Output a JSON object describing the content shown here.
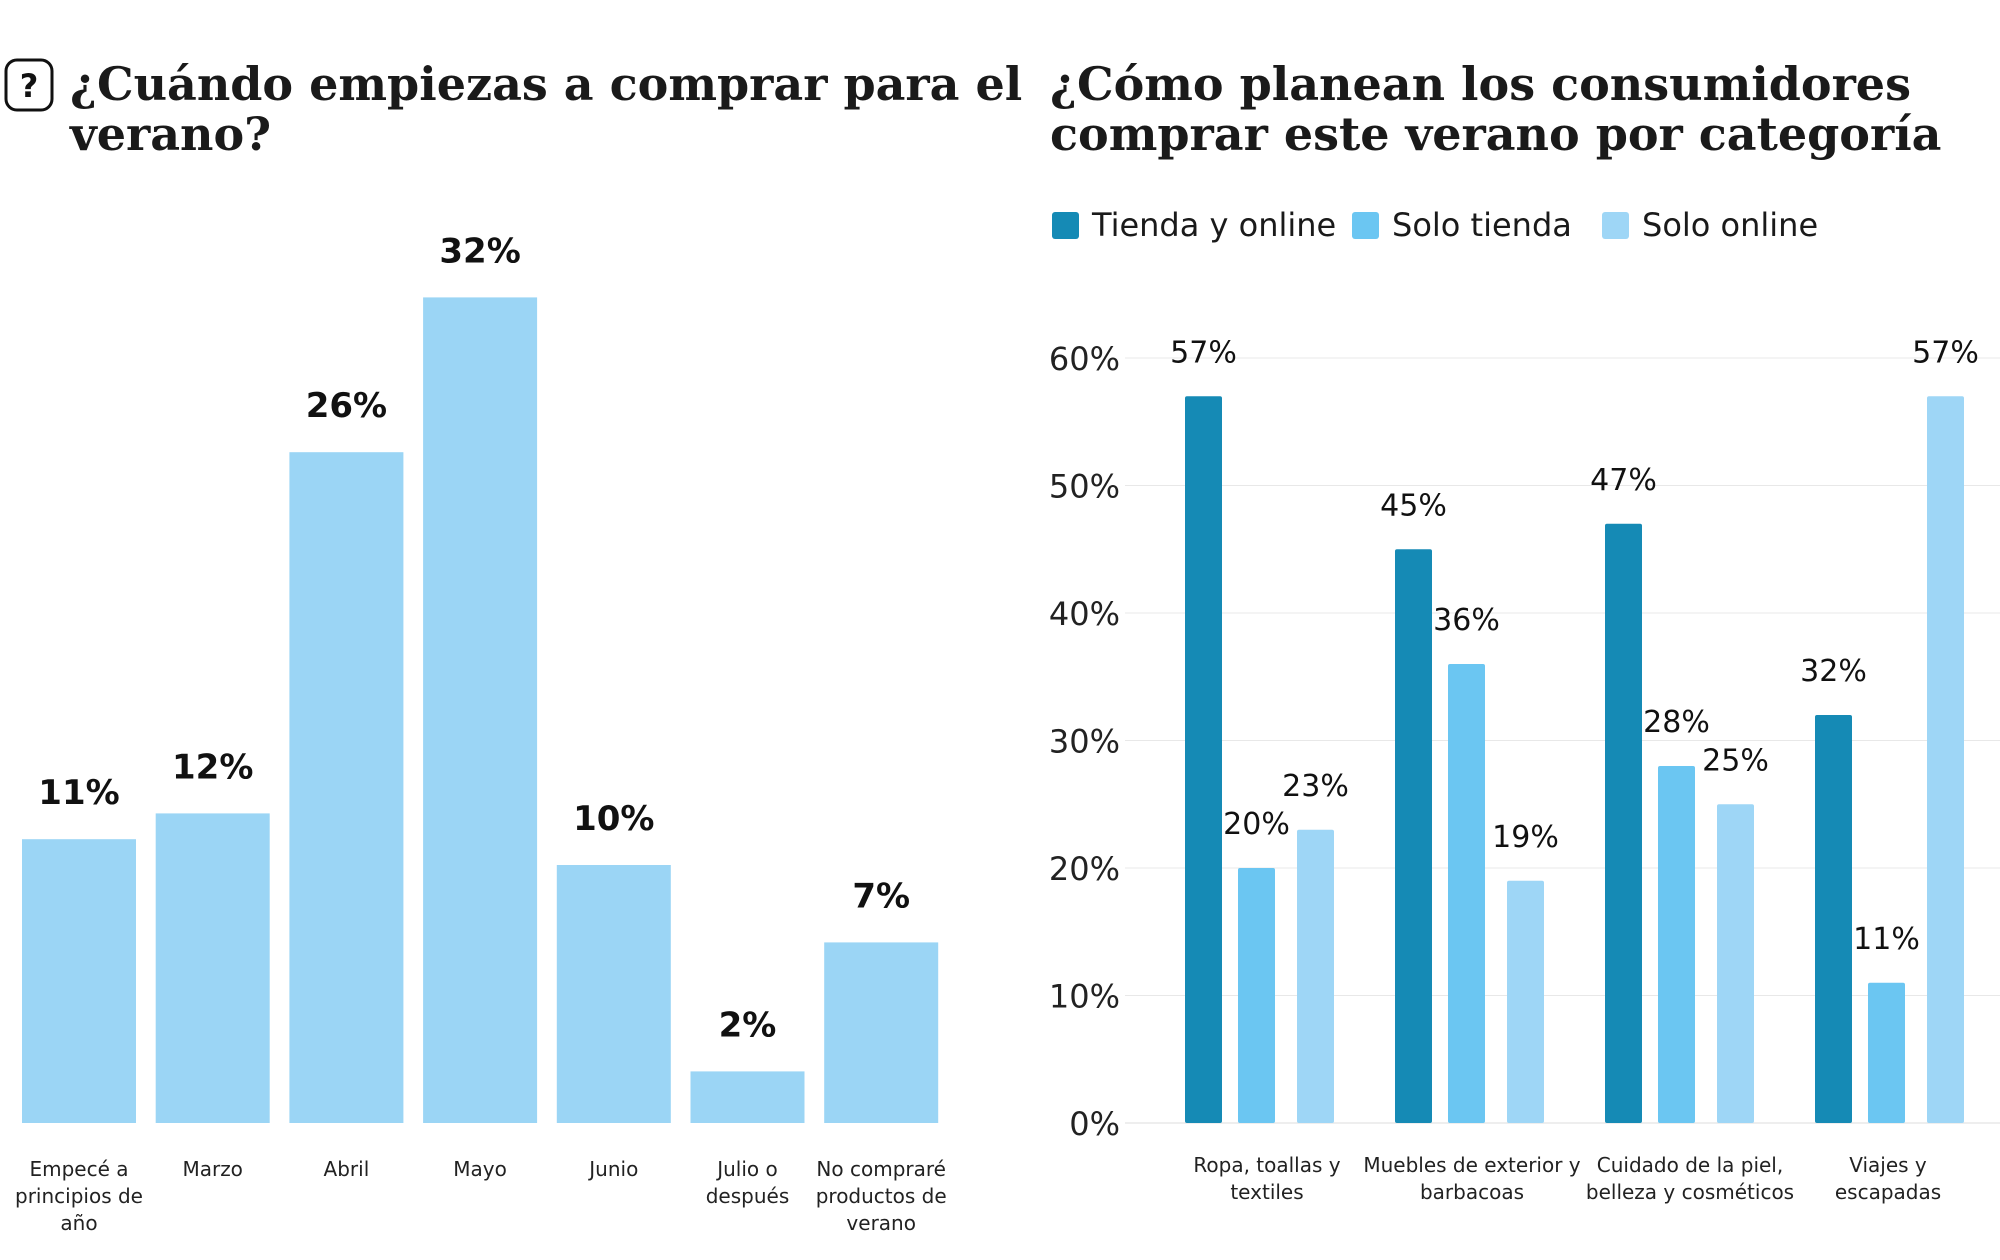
{
  "colors": {
    "chart1_bar": "#9bd5f5",
    "tienda_y_online": "#158ab5",
    "solo_tienda": "#6bc6f2",
    "solo_online": "#9ed6f6",
    "grid": "#e8e8e8"
  },
  "icons": {
    "help": "question-mark-icon"
  },
  "icon_text": {
    "help": "?"
  },
  "chart_data": [
    {
      "type": "bar",
      "title_lines": [
        "¿Cuándo empiezas a comprar para el",
        "verano?"
      ],
      "categories": [
        [
          "Empecé a",
          "principios de",
          "año"
        ],
        [
          "Marzo"
        ],
        [
          "Abril"
        ],
        [
          "Mayo"
        ],
        [
          "Junio"
        ],
        [
          "Julio o",
          "después"
        ],
        [
          "No compraré",
          "productos de",
          "verano"
        ]
      ],
      "values": [
        11,
        12,
        26,
        32,
        10,
        2,
        7
      ],
      "value_labels": [
        "11%",
        "12%",
        "26%",
        "32%",
        "10%",
        "2%",
        "7%"
      ],
      "xlabel": "",
      "ylabel": "",
      "ylim": [
        0,
        32
      ],
      "grid": false,
      "legend": "none"
    },
    {
      "type": "bar",
      "title_lines": [
        "¿Cómo planean los consumidores",
        "comprar este verano por categoría"
      ],
      "legend_position": "top-left",
      "categories": [
        [
          "Ropa, toallas y",
          "textiles"
        ],
        [
          "Muebles de exterior y",
          "barbacoas"
        ],
        [
          "Cuidado de la piel,",
          "belleza y cosméticos"
        ],
        [
          "Viajes y",
          "escapadas"
        ]
      ],
      "series": [
        {
          "name": "Tienda y online",
          "values": [
            57,
            45,
            47,
            32
          ],
          "labels": [
            "57%",
            "45%",
            "47%",
            "32%"
          ]
        },
        {
          "name": "Solo tienda",
          "values": [
            20,
            36,
            28,
            11
          ],
          "labels": [
            "20%",
            "36%",
            "28%",
            "11%"
          ]
        },
        {
          "name": "Solo online",
          "values": [
            23,
            19,
            25,
            57
          ],
          "labels": [
            "23%",
            "19%",
            "25%",
            "57%"
          ]
        }
      ],
      "y_ticks": [
        "0%",
        "10%",
        "20%",
        "30%",
        "40%",
        "50%",
        "60%"
      ],
      "ylim": [
        0,
        60
      ],
      "grid": true
    }
  ]
}
